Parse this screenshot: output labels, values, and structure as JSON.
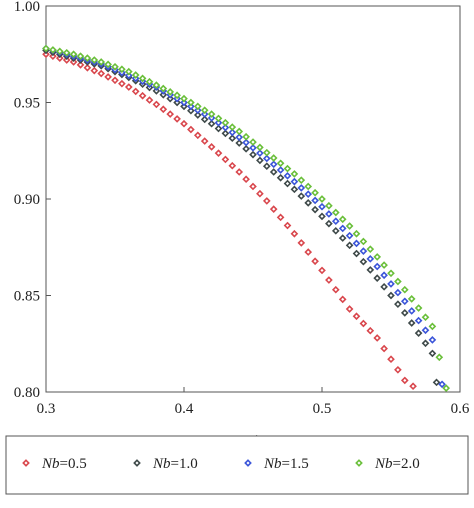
{
  "chart_data": {
    "type": "scatter",
    "title": "",
    "xlabel": "t",
    "ylabel": "",
    "xlim": [
      0.3,
      0.6
    ],
    "ylim": [
      0.8,
      1.0
    ],
    "xticks": [
      "0.3",
      "0.4",
      "0.5",
      "0.6"
    ],
    "yticks": [
      "0.80",
      "0.85",
      "0.90",
      "0.95",
      "1.00"
    ],
    "grid": false,
    "legend_position": "bottom",
    "series": [
      {
        "name": "Nb=0.5",
        "legend_param": "Nb",
        "legend_value": "=0.5",
        "color": "#d9474d",
        "x": [
          0.3,
          0.32,
          0.34,
          0.36,
          0.38,
          0.4,
          0.42,
          0.44,
          0.46,
          0.48,
          0.5,
          0.52,
          0.54,
          0.56,
          0.566
        ],
        "y": [
          0.975,
          0.971,
          0.965,
          0.958,
          0.949,
          0.939,
          0.927,
          0.914,
          0.899,
          0.882,
          0.863,
          0.843,
          0.828,
          0.806,
          0.803
        ]
      },
      {
        "name": "Nb=1.0",
        "legend_param": "Nb",
        "legend_value": "=1.0",
        "color": "#3f4a4a",
        "x": [
          0.3,
          0.32,
          0.34,
          0.36,
          0.38,
          0.4,
          0.42,
          0.44,
          0.46,
          0.48,
          0.5,
          0.52,
          0.54,
          0.56,
          0.58,
          0.583
        ],
        "y": [
          0.977,
          0.973,
          0.969,
          0.963,
          0.956,
          0.948,
          0.939,
          0.929,
          0.917,
          0.905,
          0.891,
          0.876,
          0.859,
          0.841,
          0.82,
          0.805
        ]
      },
      {
        "name": "Nb=1.5",
        "legend_param": "Nb",
        "legend_value": "=1.5",
        "color": "#3b55d9",
        "x": [
          0.3,
          0.32,
          0.34,
          0.36,
          0.38,
          0.4,
          0.42,
          0.44,
          0.46,
          0.48,
          0.5,
          0.52,
          0.54,
          0.56,
          0.58,
          0.587
        ],
        "y": [
          0.978,
          0.974,
          0.97,
          0.964,
          0.958,
          0.95,
          0.942,
          0.932,
          0.921,
          0.909,
          0.896,
          0.881,
          0.865,
          0.847,
          0.827,
          0.804
        ]
      },
      {
        "name": "Nb=2.0",
        "legend_param": "Nb",
        "legend_value": "=2.0",
        "color": "#6abf3a",
        "x": [
          0.3,
          0.32,
          0.34,
          0.36,
          0.38,
          0.4,
          0.42,
          0.44,
          0.46,
          0.48,
          0.5,
          0.52,
          0.54,
          0.56,
          0.58,
          0.59
        ],
        "y": [
          0.978,
          0.975,
          0.971,
          0.966,
          0.959,
          0.952,
          0.944,
          0.935,
          0.924,
          0.913,
          0.9,
          0.886,
          0.87,
          0.853,
          0.834,
          0.802
        ]
      }
    ]
  }
}
